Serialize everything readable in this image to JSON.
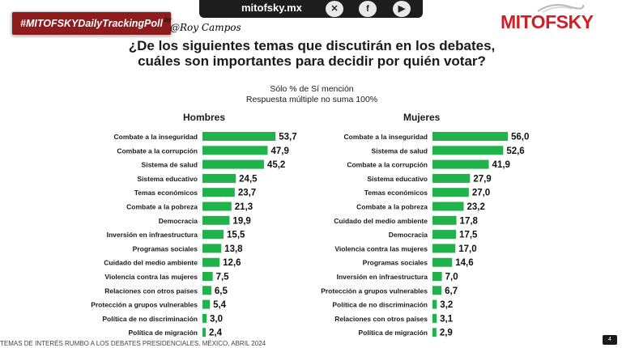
{
  "header": {
    "hashtag": "#MITOFSKYDailyTrackingPoll",
    "by": "by",
    "signature": "@Roy Campos",
    "website": "mitofsky.mx",
    "social_icons": [
      "x-icon",
      "facebook-icon",
      "youtube-icon"
    ],
    "brand": "MITOFSKY",
    "brand_color": "#cf2027"
  },
  "title": "¿De los siguientes temas que discutirán en los debates, cuáles son importantes para decidir por quién votar?",
  "subtitle_1": "Sólo % de Sí mención",
  "subtitle_2": "Respuesta múltiple no suma 100%",
  "footer": "TEMAS DE INTERÉS RUMBO A LOS DEBATES PRESIDENCIALES. MÉXICO, ABRIL 2024",
  "page_number": "4",
  "bar_color": "#21b24b",
  "chart_data": [
    {
      "type": "bar",
      "orientation": "horizontal",
      "title": "Hombres",
      "categories": [
        "Combate a la inseguridad",
        "Combate a la corrupción",
        "Sistema de salud",
        "Sistema educativo",
        "Temas económicos",
        "Combate a la pobreza",
        "Democracia",
        "Inversión en infraestructura",
        "Programas sociales",
        "Cuidado del medio ambiente",
        "Violencia contra las mujeres",
        "Relaciones con otros países",
        "Protección a grupos vulnerables",
        "Política de no discriminación",
        "Política de migración"
      ],
      "values": [
        53.7,
        47.9,
        45.2,
        24.5,
        23.7,
        21.3,
        19.9,
        15.5,
        13.8,
        12.6,
        7.5,
        6.5,
        5.4,
        3.0,
        2.4
      ],
      "labels": [
        "53,7",
        "47,9",
        "45,2",
        "24,5",
        "23,7",
        "21,3",
        "19,9",
        "15,5",
        "13,8",
        "12,6",
        "7,5",
        "6,5",
        "5,4",
        "3,0",
        "2,4"
      ]
    },
    {
      "type": "bar",
      "orientation": "horizontal",
      "title": "Mujeres",
      "categories": [
        "Combate a la inseguridad",
        "Sistema de salud",
        "Combate a la corrupción",
        "Sistema educativo",
        "Temas económicos",
        "Combate a la pobreza",
        "Cuidado del medio ambiente",
        "Democracia",
        "Violencia contra las mujeres",
        "Programas sociales",
        "Inversión en infraestructura",
        "Protección a grupos vulnerables",
        "Política de no discriminación",
        "Relaciones con otros países",
        "Política de migración"
      ],
      "values": [
        56.0,
        52.6,
        41.9,
        27.9,
        27.0,
        23.2,
        17.8,
        17.5,
        17.0,
        14.6,
        7.0,
        6.7,
        3.2,
        3.1,
        2.9
      ],
      "labels": [
        "56,0",
        "52,6",
        "41,9",
        "27,9",
        "27,0",
        "23,2",
        "17,8",
        "17,5",
        "17,0",
        "14,6",
        "7,0",
        "6,7",
        "3,2",
        "3,1",
        "2,9"
      ]
    }
  ]
}
